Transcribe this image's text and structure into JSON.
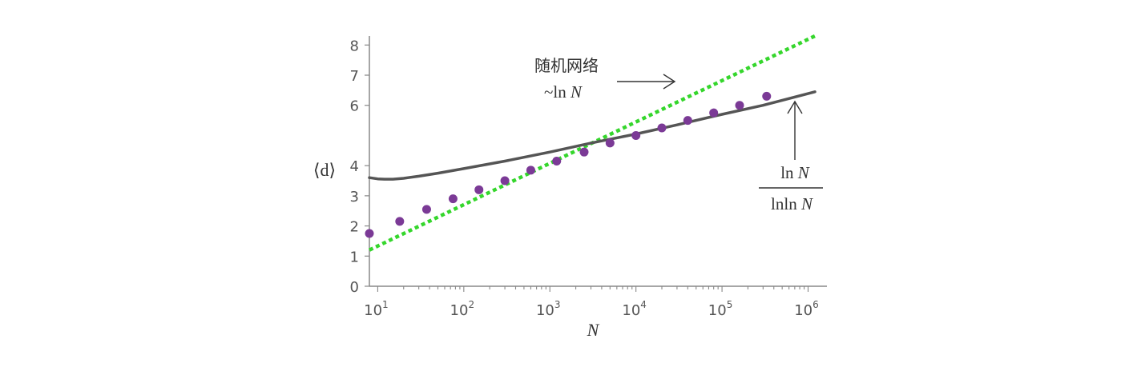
{
  "chart_data": {
    "type": "line",
    "xscale": "log",
    "xlim": [
      8,
      1200000
    ],
    "ylim": [
      0,
      8.3
    ],
    "xlabel": "N",
    "ylabel": "⟨d⟩",
    "x_ticks": [
      {
        "base": "10",
        "exp": "1"
      },
      {
        "base": "10",
        "exp": "2"
      },
      {
        "base": "10",
        "exp": "3"
      },
      {
        "base": "10",
        "exp": "4"
      },
      {
        "base": "10",
        "exp": "5"
      },
      {
        "base": "10",
        "exp": "6"
      }
    ],
    "y_ticks": [
      "0",
      "1",
      "2",
      "3",
      "4",
      "6",
      "7",
      "8"
    ],
    "series": [
      {
        "kind": "line",
        "style": "dotted",
        "color": "#35d62c",
        "x": [
          8,
          1200000
        ],
        "y": [
          1.2,
          8.3
        ]
      },
      {
        "kind": "line",
        "style": "solid",
        "color": "#555555",
        "x": [
          8,
          10,
          12,
          15,
          20,
          30,
          50,
          100,
          300,
          1000,
          3000,
          10000,
          30000,
          100000,
          300000,
          1200000
        ],
        "y": [
          3.6,
          3.56,
          3.55,
          3.55,
          3.58,
          3.65,
          3.75,
          3.9,
          4.15,
          4.45,
          4.75,
          5.05,
          5.35,
          5.7,
          6.0,
          6.45
        ]
      },
      {
        "kind": "scatter",
        "color": "#7b3a96",
        "x": [
          8,
          18,
          37,
          75,
          150,
          300,
          600,
          1200,
          2500,
          5000,
          10000,
          20000,
          40000,
          80000,
          160000,
          330000
        ],
        "y": [
          1.75,
          2.15,
          2.55,
          2.9,
          3.2,
          3.5,
          3.85,
          4.15,
          4.45,
          4.75,
          5.0,
          5.25,
          5.5,
          5.75,
          6.0,
          6.3
        ]
      }
    ],
    "annotations": {
      "random_network_label": "随机网络",
      "ln_label": "~ln ",
      "ln_var": "N",
      "frac_num_ln": "ln ",
      "frac_num_var": "N",
      "frac_den_ln": "lnln ",
      "frac_den_var": "N"
    }
  }
}
